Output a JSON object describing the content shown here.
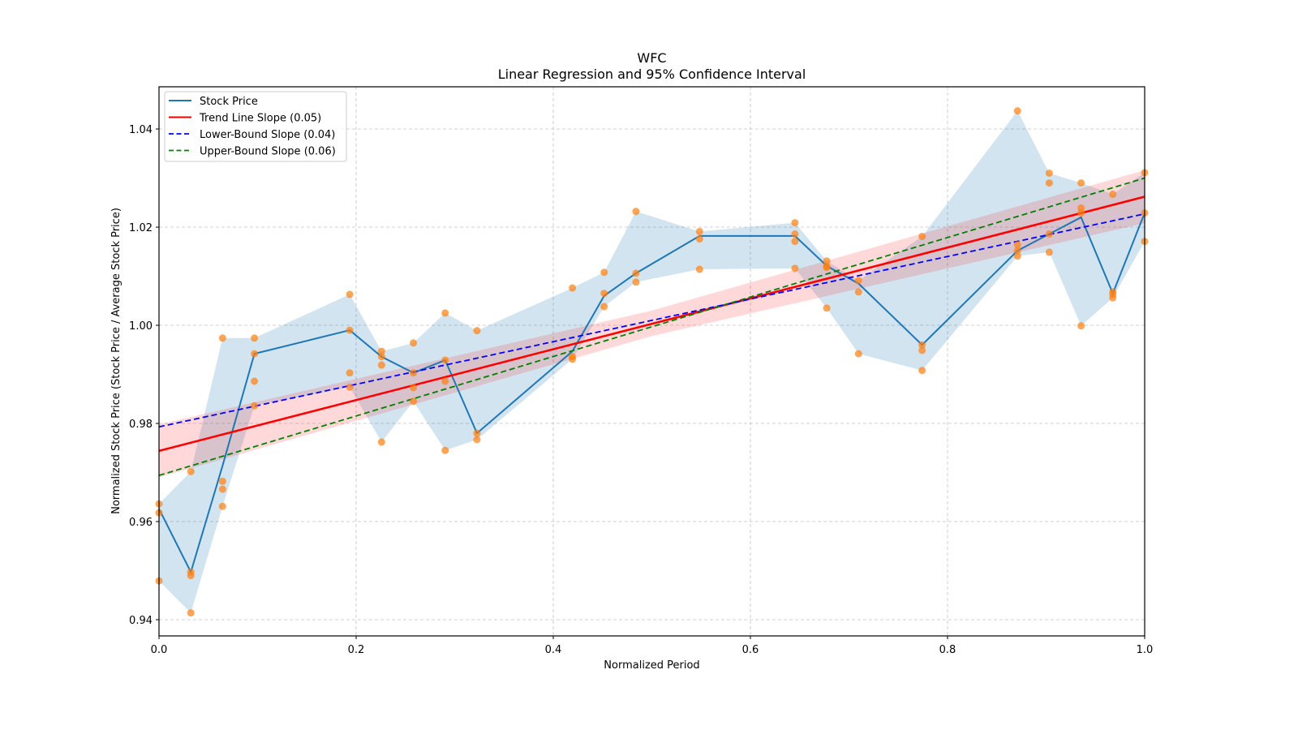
{
  "chart_data": {
    "type": "line",
    "title": "WFC",
    "subtitle": "Linear Regression and 95% Confidence Interval",
    "xlabel": "Normalized Period",
    "ylabel": "Normalized Stock Price (Stock Price / Average Stock Price)",
    "xlim": [
      0.0,
      1.0
    ],
    "ylim": [
      0.9367,
      1.0486
    ],
    "xticks": [
      0.0,
      0.2,
      0.4,
      0.6,
      0.8,
      1.0
    ],
    "xtick_labels": [
      "0.0",
      "0.2",
      "0.4",
      "0.6",
      "0.8",
      "1.0"
    ],
    "yticks": [
      0.94,
      0.96,
      0.98,
      1.0,
      1.02,
      1.04
    ],
    "ytick_labels": [
      "0.94",
      "0.96",
      "0.98",
      "1.00",
      "1.02",
      "1.04"
    ],
    "grid": true,
    "legend_position": "top-left",
    "legend": [
      {
        "label": "Stock Price",
        "color": "#1f77b4",
        "style": "solid"
      },
      {
        "label": "Trend Line Slope (0.05)",
        "color": "#ff0000",
        "style": "solid"
      },
      {
        "label": "Lower-Bound Slope (0.04)",
        "color": "#0000ff",
        "style": "dashed"
      },
      {
        "label": "Upper-Bound Slope (0.06)",
        "color": "#008000",
        "style": "dashed"
      }
    ],
    "colors": {
      "stock_line": "#1f77b4",
      "stock_band": "#1f77b4",
      "scatter": "#ff7f0e",
      "trend": "#ff0000",
      "trend_ci": "#ff0000",
      "lower": "#0000ff",
      "upper": "#008000"
    },
    "stock_price": {
      "x": [
        0.0,
        0.0323,
        0.0645,
        0.0968,
        0.1935,
        0.2258,
        0.2581,
        0.2903,
        0.3226,
        0.4194,
        0.4516,
        0.4839,
        0.5484,
        0.6452,
        0.6774,
        0.7097,
        0.7742,
        0.871,
        0.9032,
        0.9355,
        0.9677,
        1.0
      ],
      "y": [
        0.9626,
        0.9497,
        0.9714,
        0.9942,
        0.999,
        0.9936,
        0.9903,
        0.9929,
        0.978,
        0.9947,
        1.006,
        1.0106,
        1.0182,
        1.0182,
        1.0121,
        1.0085,
        0.996,
        1.0152,
        1.0186,
        1.022,
        1.0065,
        1.0229
      ],
      "band_low": [
        0.9479,
        0.9414,
        0.9631,
        0.9836,
        0.9874,
        0.9762,
        0.9845,
        0.9745,
        0.9767,
        0.9931,
        1.0038,
        1.0088,
        1.0114,
        1.0116,
        1.0035,
        0.9942,
        0.9908,
        1.0141,
        1.0149,
        0.9999,
        1.0056,
        1.0171
      ],
      "band_high": [
        0.9636,
        0.9702,
        0.9974,
        0.9974,
        1.0063,
        0.9947,
        0.9964,
        1.0025,
        0.9989,
        1.0076,
        1.0108,
        1.0232,
        1.0191,
        1.0209,
        1.0131,
        1.0091,
        1.0181,
        1.0437,
        1.031,
        1.029,
        1.0267,
        1.0311
      ]
    },
    "scatter": {
      "x": [
        0.0,
        0.0,
        0.0,
        0.0323,
        0.0323,
        0.0323,
        0.0323,
        0.0645,
        0.0645,
        0.0645,
        0.0645,
        0.0968,
        0.0968,
        0.0968,
        0.0968,
        0.1935,
        0.1935,
        0.1935,
        0.1935,
        0.2258,
        0.2258,
        0.2258,
        0.2258,
        0.2581,
        0.2581,
        0.2581,
        0.2581,
        0.2903,
        0.2903,
        0.2903,
        0.2903,
        0.3226,
        0.3226,
        0.3226,
        0.4194,
        0.4194,
        0.4194,
        0.4516,
        0.4516,
        0.4516,
        0.4839,
        0.4839,
        0.4839,
        0.5484,
        0.5484,
        0.5484,
        0.6452,
        0.6452,
        0.6452,
        0.6452,
        0.6774,
        0.6774,
        0.6774,
        0.6774,
        0.7097,
        0.7097,
        0.7097,
        0.7742,
        0.7742,
        0.7742,
        0.7742,
        0.871,
        0.871,
        0.871,
        0.871,
        0.9032,
        0.9032,
        0.9032,
        0.9032,
        0.9355,
        0.9355,
        0.9355,
        0.9355,
        0.9677,
        0.9677,
        0.9677,
        0.9677,
        1.0,
        1.0,
        1.0
      ],
      "y": [
        0.9636,
        0.9618,
        0.9479,
        0.9702,
        0.9497,
        0.949,
        0.9414,
        0.9974,
        0.9682,
        0.9666,
        0.9631,
        0.9974,
        0.9942,
        0.9886,
        0.9836,
        1.0063,
        0.999,
        0.9903,
        0.9874,
        0.9947,
        0.9936,
        0.9919,
        0.9762,
        0.9964,
        0.9903,
        0.9873,
        0.9845,
        1.0025,
        0.9929,
        0.9886,
        0.9745,
        0.9989,
        0.978,
        0.9767,
        1.0076,
        0.9936,
        0.9931,
        1.0108,
        1.0065,
        1.0038,
        1.0232,
        1.0106,
        1.0088,
        1.0191,
        1.0176,
        1.0114,
        1.0209,
        1.0186,
        1.0171,
        1.0116,
        1.0131,
        1.012,
        1.0118,
        1.0035,
        1.0091,
        1.0068,
        0.9942,
        1.0181,
        0.996,
        0.9949,
        0.9908,
        1.0437,
        1.0164,
        1.0152,
        1.0141,
        1.031,
        1.029,
        1.0186,
        1.0149,
        1.029,
        1.0239,
        1.0229,
        0.9999,
        1.0267,
        1.0068,
        1.0063,
        1.0056,
        1.0311,
        1.0229,
        1.0171
      ]
    },
    "trend_line": {
      "x": [
        0.0,
        1.0
      ],
      "y": [
        0.9744,
        1.0262
      ],
      "slope": 0.05
    },
    "trend_ci": {
      "x": [
        0.0,
        0.5,
        1.0
      ],
      "low": [
        0.969,
        0.9978,
        1.0208
      ],
      "high": [
        0.9798,
        1.003,
        1.0316
      ]
    },
    "lower_bound_line": {
      "x": [
        0.0,
        1.0
      ],
      "y": [
        0.9793,
        1.0227
      ],
      "slope": 0.04
    },
    "upper_bound_line": {
      "x": [
        0.0,
        1.0
      ],
      "y": [
        0.9694,
        1.03
      ],
      "slope": 0.06
    }
  }
}
